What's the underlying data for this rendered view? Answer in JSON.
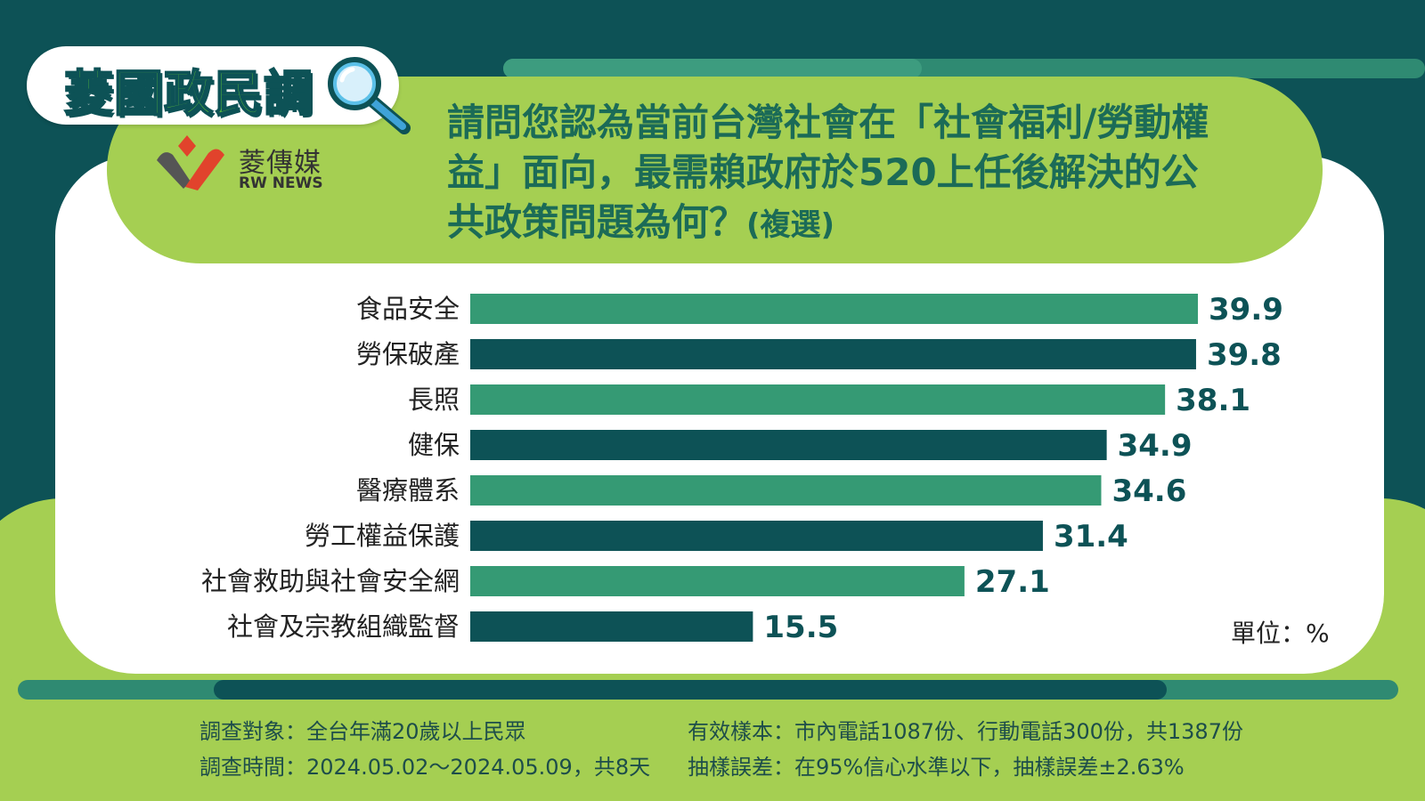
{
  "brand": {
    "series_title": "菱國政民調",
    "logo_cn": "菱傳媒",
    "logo_en": "RW NEWS"
  },
  "question": {
    "text": "請問您認為當前台灣社會在「社會福利/勞動權益」面向，最需賴政府於520上任後解決的公共政策問題為何？",
    "note": "(複選)"
  },
  "chart_data": {
    "type": "bar",
    "orientation": "horizontal",
    "categories": [
      "食品安全",
      "勞保破產",
      "長照",
      "健保",
      "醫療體系",
      "勞工權益保護",
      "社會救助與社會安全網",
      "社會及宗教組織監督"
    ],
    "values": [
      39.9,
      39.8,
      38.1,
      34.9,
      34.6,
      31.4,
      27.1,
      15.5
    ],
    "data_labels": [
      "39.9",
      "39.8",
      "38.1",
      "34.9",
      "34.6",
      "31.4",
      "27.1",
      "15.5"
    ],
    "unit_label": "單位：%",
    "xlim": [
      0,
      39.9
    ],
    "bar_colors": [
      "#359a74",
      "#0d5256"
    ],
    "grid": false,
    "legend": "none"
  },
  "footer": {
    "survey_target": "調查對象：全台年滿20歲以上民眾",
    "survey_time": "調查時間：2024.05.02～2024.05.09，共8天",
    "sample_size": "有效樣本：市內電話1087份、行動電話300份，共1387份",
    "sampling_error": "抽樣誤差：在95%信心水準以下，抽樣誤差±2.63%"
  },
  "colors": {
    "background_dark": "#0d5256",
    "accent_green": "#a5cf52",
    "teal": "#2f8a72",
    "title_text": "#1b6b57"
  }
}
